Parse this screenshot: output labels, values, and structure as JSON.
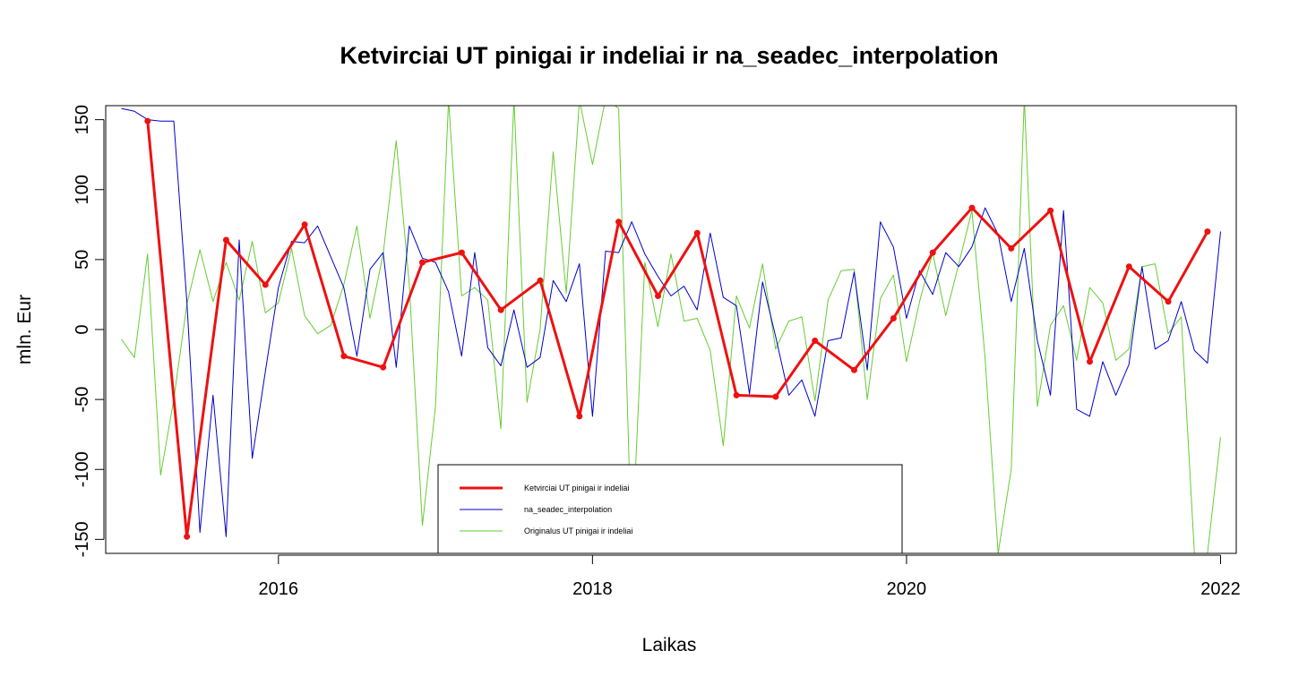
{
  "chart_data": {
    "type": "line",
    "title": "Ketvirciai UT pinigai ir indeliai ir na_seadec_interpolation",
    "xlabel": "Laikas",
    "ylabel": "mln. Eur",
    "xlim": [
      2014.9,
      2022.1
    ],
    "ylim": [
      -160,
      160
    ],
    "x_ticks": [
      2016,
      2018,
      2020,
      2022
    ],
    "x_tick_labels": [
      "2016",
      "2018",
      "2020",
      "2022"
    ],
    "y_ticks": [
      -150,
      -100,
      -50,
      0,
      50,
      100,
      150
    ],
    "y_tick_labels": [
      "-150",
      "-100",
      "-50",
      "0",
      "50",
      "100",
      "150"
    ],
    "grid": false,
    "legend_position": "bottom-center",
    "series": [
      {
        "name": "Originalus UT pinigai ir indeliai",
        "color": "#66cc33",
        "style": "thin-line",
        "x_start": 2015.0,
        "x_step": 0.083333,
        "values": [
          -7,
          -20,
          54,
          -104,
          -50,
          18,
          57,
          20,
          48,
          21,
          63,
          12,
          19,
          58,
          10,
          -3,
          3,
          32,
          74,
          8,
          54,
          135,
          32,
          -140,
          -55,
          164,
          24,
          30,
          21,
          -71,
          165,
          -52,
          0,
          127,
          26,
          164,
          118,
          165,
          158,
          -160,
          48,
          2,
          54,
          6,
          8,
          -15,
          -83,
          24,
          1,
          47,
          -14,
          6,
          9,
          -51,
          21,
          42,
          43,
          -50,
          22,
          39,
          -23,
          20,
          55,
          10,
          47,
          85,
          -20,
          -160,
          -100,
          165,
          -55,
          3,
          17,
          -22,
          30,
          19,
          -22,
          -14,
          45,
          47,
          -3,
          9,
          -160,
          -160,
          -77
        ]
      },
      {
        "name": "na_seadec_interpolation",
        "color": "#0000cc",
        "style": "thin-line",
        "x_start": 2015.0,
        "x_step": 0.083333,
        "values": [
          158,
          156,
          150,
          149,
          149,
          20,
          -145,
          -47,
          -148,
          64,
          -92,
          -30,
          30,
          63,
          62,
          74,
          52,
          30,
          -19,
          43,
          55,
          -27,
          74,
          51,
          48,
          27,
          -19,
          55,
          -13,
          -26,
          14,
          -27,
          -20,
          35,
          20,
          47,
          -62,
          56,
          55,
          77,
          54,
          38,
          24,
          31,
          14,
          69,
          23,
          17,
          -46,
          34,
          -5,
          -47,
          -36,
          -62,
          -8,
          -6,
          41,
          -29,
          77,
          59,
          8,
          42,
          25,
          55,
          45,
          59,
          87,
          68,
          20,
          58,
          -8,
          -47,
          85,
          -57,
          -62,
          -23,
          -47,
          -25,
          45,
          -14,
          -8,
          20,
          -15,
          -24,
          70
        ]
      },
      {
        "name": "Ketvirciai UT pinigai ir indeliai",
        "color": "#ee1111",
        "style": "thick-line-points",
        "x": [
          2015.167,
          2015.417,
          2015.667,
          2015.917,
          2016.167,
          2016.417,
          2016.667,
          2016.917,
          2017.167,
          2017.417,
          2017.667,
          2017.917,
          2018.167,
          2018.417,
          2018.667,
          2018.917,
          2019.167,
          2019.417,
          2019.667,
          2019.917,
          2020.167,
          2020.417,
          2020.667,
          2020.917,
          2021.167,
          2021.417,
          2021.667,
          2021.917
        ],
        "values": [
          149,
          -148,
          64,
          32,
          75,
          -19,
          -27,
          48,
          55,
          14,
          35,
          -62,
          77,
          24,
          69,
          -47,
          -48,
          -8,
          -29,
          8,
          55,
          87,
          58,
          85,
          -23,
          45,
          20,
          70
        ]
      }
    ]
  }
}
